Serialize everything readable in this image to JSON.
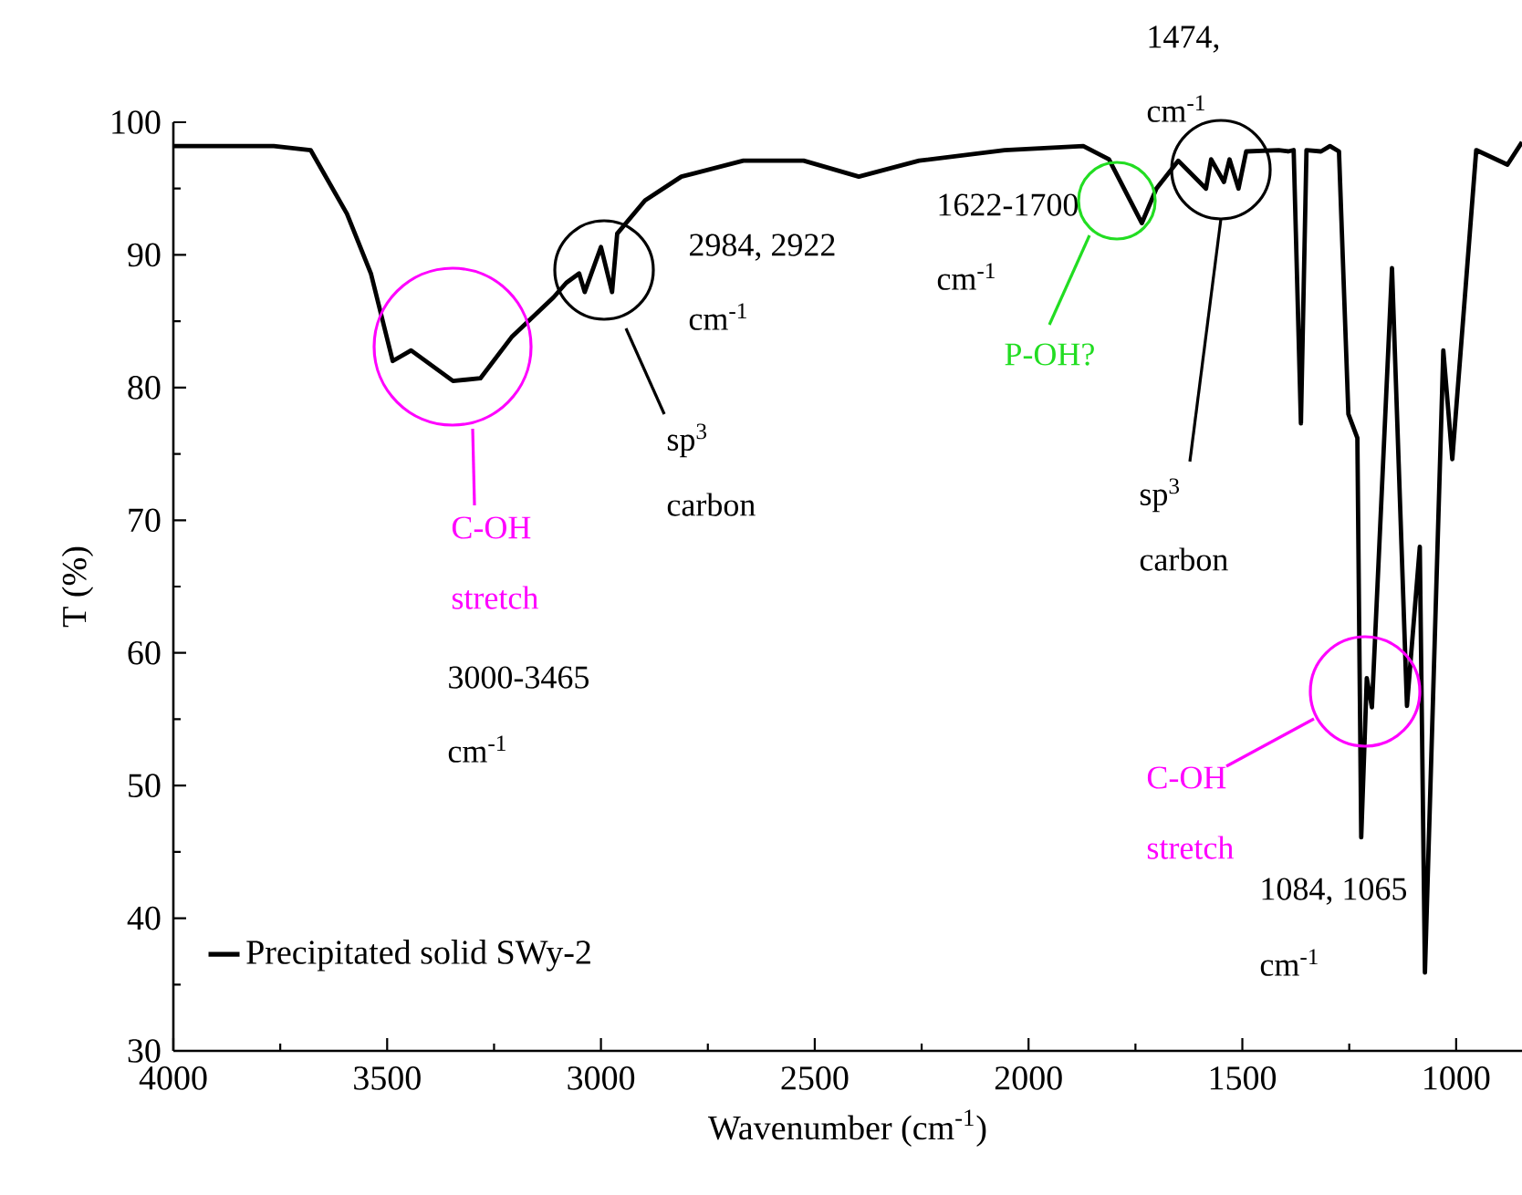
{
  "chart_data": {
    "type": "line",
    "xlabel": "Wavenumber (cm$^{-1}$)",
    "ylabel": "T (%)",
    "xlim": [
      4000,
      846
    ],
    "ylim": [
      30,
      100
    ],
    "xticks": [
      4000,
      3500,
      3000,
      2500,
      2000,
      1500,
      1000
    ],
    "yticks": [
      30,
      40,
      50,
      60,
      70,
      80,
      90,
      100
    ],
    "legend": "bottom left",
    "x": [
      4000,
      3765,
      3679,
      3594,
      3538,
      3487,
      3444,
      3346,
      3282,
      3209,
      3111,
      3081,
      3051,
      3038,
      3000,
      2974,
      2962,
      2897,
      2812,
      2667,
      2526,
      2397,
      2256,
      2056,
      1872,
      1812,
      1735,
      1701,
      1650,
      1585,
      1573,
      1543,
      1530,
      1509,
      1491,
      1415,
      1393,
      1380,
      1363,
      1350,
      1316,
      1295,
      1274,
      1252,
      1231,
      1222,
      1209,
      1197,
      1150,
      1115,
      1085,
      1073,
      1030,
      1009,
      953,
      880,
      846
    ],
    "series": [
      {
        "name": "Precipitated solid SWy-2",
        "color": "#000000",
        "values": [
          98.2,
          98.2,
          97.9,
          93.1,
          88.6,
          82.0,
          82.8,
          80.5,
          80.7,
          83.8,
          86.8,
          87.9,
          88.6,
          87.2,
          90.6,
          87.2,
          91.6,
          94.1,
          95.9,
          97.1,
          97.1,
          95.9,
          97.1,
          97.9,
          98.2,
          97.2,
          92.4,
          95.0,
          97.1,
          95.0,
          97.2,
          95.5,
          97.2,
          95.0,
          97.8,
          97.9,
          97.8,
          97.9,
          77.3,
          97.9,
          97.8,
          98.2,
          97.8,
          78.0,
          76.2,
          46.1,
          58.1,
          55.9,
          89.0,
          56.0,
          68.0,
          35.9,
          82.8,
          74.6,
          97.9,
          96.8,
          98.5
        ]
      }
    ],
    "annotations": [
      "C-OH",
      "stretch",
      "3000-3465",
      "cm$^{-1}$",
      "2984, 2922",
      "cm$^{-1}$",
      "sp$^{3}$",
      "carbon",
      "1622-1700",
      "cm$^{-1}$",
      "P-OH?",
      "1474,",
      "cm$^{-1}$",
      "sp$^{3}$",
      "carbon",
      "C-OH",
      "stretch",
      "1084, 1065",
      "cm$^{-1}$"
    ]
  }
}
